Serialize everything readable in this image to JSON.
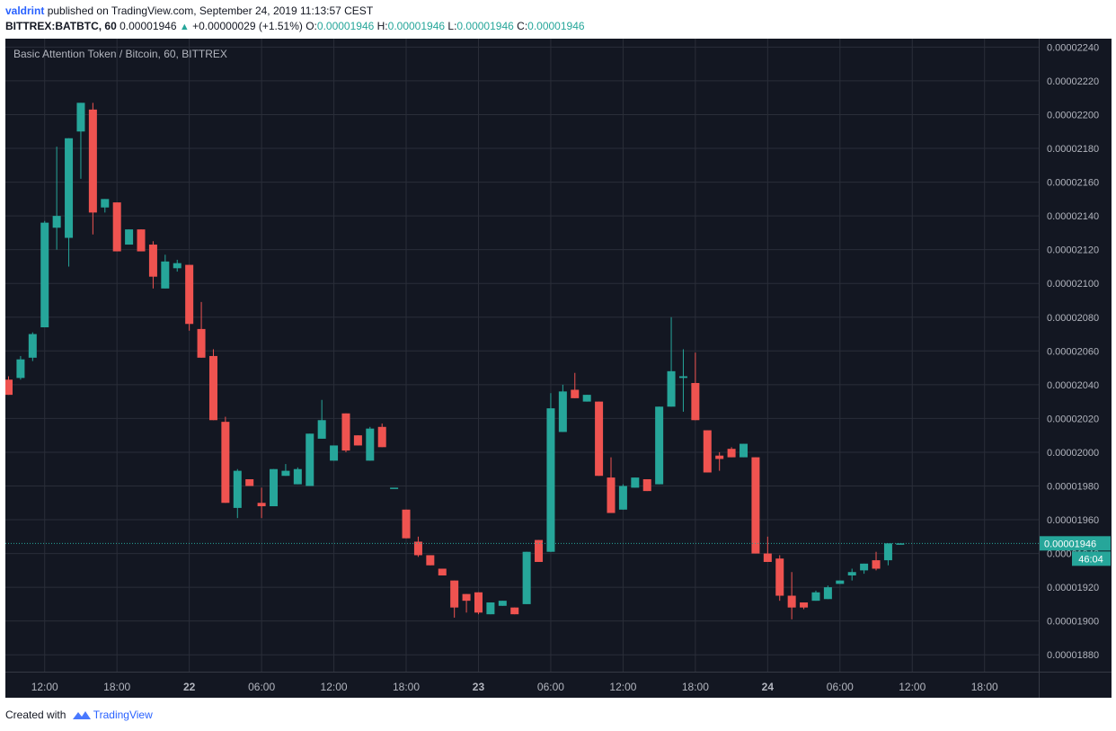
{
  "header": {
    "author": "valdrint",
    "published_text": "published on TradingView.com, September 24, 2019 11:13:57 CEST",
    "symbol": "BITTREX:BATBTC, 60",
    "last": "0.00001946",
    "change": "+0.00000029 (+1.51%)",
    "o_label": "O:",
    "o_value": "0.00001946",
    "h_label": "H:",
    "h_value": "0.00001946",
    "l_label": "L:",
    "l_value": "0.00001946",
    "c_label": "C:",
    "c_value": "0.00001946"
  },
  "footer": {
    "created_with": "Created with",
    "brand": "TradingView"
  },
  "colors": {
    "up": "#26a69a",
    "down": "#ef5350",
    "background": "#131722",
    "grid": "#2a2e39",
    "axis_text": "#b2b5be",
    "price_tag": "#26a69a"
  },
  "chart_data": {
    "type": "candlestick",
    "title": "Basic Attention Token / Bitcoin, 60, BITTREX",
    "ylim": [
      1.87e-05,
      2.245e-05
    ],
    "y_ticks": [
      "0.00001880",
      "0.00001900",
      "0.00001920",
      "0.00001940",
      "0.00001960",
      "0.00001980",
      "0.00002000",
      "0.00002020",
      "0.00002040",
      "0.00002060",
      "0.00002080",
      "0.00002100",
      "0.00002120",
      "0.00002140",
      "0.00002160",
      "0.00002180",
      "0.00002200",
      "0.00002220",
      "0.00002240"
    ],
    "x_ticks": [
      {
        "index": 3,
        "label": "12:00",
        "bold": false
      },
      {
        "index": 9,
        "label": "18:00",
        "bold": false
      },
      {
        "index": 15,
        "label": "22",
        "bold": true
      },
      {
        "index": 21,
        "label": "06:00",
        "bold": false
      },
      {
        "index": 27,
        "label": "12:00",
        "bold": false
      },
      {
        "index": 33,
        "label": "18:00",
        "bold": false
      },
      {
        "index": 39,
        "label": "23",
        "bold": true
      },
      {
        "index": 45,
        "label": "06:00",
        "bold": false
      },
      {
        "index": 51,
        "label": "12:00",
        "bold": false
      },
      {
        "index": 57,
        "label": "18:00",
        "bold": false
      },
      {
        "index": 63,
        "label": "24",
        "bold": true
      },
      {
        "index": 69,
        "label": "06:00",
        "bold": false
      },
      {
        "index": 75,
        "label": "12:00",
        "bold": false
      },
      {
        "index": 81,
        "label": "18:00",
        "bold": false
      }
    ],
    "last_price": "0.00001946",
    "last_price_value": 1.946e-05,
    "countdown": "46:04",
    "candles": [
      {
        "o": 2.043e-05,
        "h": 2.045e-05,
        "l": 2.034e-05,
        "c": 2.034e-05
      },
      {
        "o": 2.044e-05,
        "h": 2.057e-05,
        "l": 2.043e-05,
        "c": 2.055e-05
      },
      {
        "o": 2.056e-05,
        "h": 2.071e-05,
        "l": 2.054e-05,
        "c": 2.07e-05
      },
      {
        "o": 2.074e-05,
        "h": 2.137e-05,
        "l": 2.074e-05,
        "c": 2.136e-05
      },
      {
        "o": 2.133e-05,
        "h": 2.181e-05,
        "l": 2.12e-05,
        "c": 2.14e-05
      },
      {
        "o": 2.127e-05,
        "h": 2.186e-05,
        "l": 2.11e-05,
        "c": 2.186e-05
      },
      {
        "o": 2.19e-05,
        "h": 2.207e-05,
        "l": 2.162e-05,
        "c": 2.207e-05
      },
      {
        "o": 2.203e-05,
        "h": 2.207e-05,
        "l": 2.129e-05,
        "c": 2.142e-05
      },
      {
        "o": 2.145e-05,
        "h": 2.15e-05,
        "l": 2.142e-05,
        "c": 2.15e-05
      },
      {
        "o": 2.148e-05,
        "h": 2.148e-05,
        "l": 2.119e-05,
        "c": 2.119e-05
      },
      {
        "o": 2.123e-05,
        "h": 2.132e-05,
        "l": 2.123e-05,
        "c": 2.132e-05
      },
      {
        "o": 2.132e-05,
        "h": 2.132e-05,
        "l": 2.119e-05,
        "c": 2.119e-05
      },
      {
        "o": 2.123e-05,
        "h": 2.125e-05,
        "l": 2.097e-05,
        "c": 2.104e-05
      },
      {
        "o": 2.097e-05,
        "h": 2.117e-05,
        "l": 2.097e-05,
        "c": 2.113e-05
      },
      {
        "o": 2.109e-05,
        "h": 2.114e-05,
        "l": 2.107e-05,
        "c": 2.112e-05
      },
      {
        "o": 2.111e-05,
        "h": 2.111e-05,
        "l": 2.072e-05,
        "c": 2.076e-05
      },
      {
        "o": 2.073e-05,
        "h": 2.089e-05,
        "l": 2.056e-05,
        "c": 2.056e-05
      },
      {
        "o": 2.057e-05,
        "h": 2.061e-05,
        "l": 2.019e-05,
        "c": 2.019e-05
      },
      {
        "o": 2.018e-05,
        "h": 2.021e-05,
        "l": 1.97e-05,
        "c": 1.97e-05
      },
      {
        "o": 1.967e-05,
        "h": 1.99e-05,
        "l": 1.961e-05,
        "c": 1.989e-05
      },
      {
        "o": 1.984e-05,
        "h": 1.984e-05,
        "l": 1.98e-05,
        "c": 1.98e-05
      },
      {
        "o": 1.97e-05,
        "h": 1.979e-05,
        "l": 1.961e-05,
        "c": 1.968e-05
      },
      {
        "o": 1.968e-05,
        "h": 1.99e-05,
        "l": 1.968e-05,
        "c": 1.99e-05
      },
      {
        "o": 1.986e-05,
        "h": 1.993e-05,
        "l": 1.986e-05,
        "c": 1.989e-05
      },
      {
        "o": 1.981e-05,
        "h": 1.991e-05,
        "l": 1.981e-05,
        "c": 1.99e-05
      },
      {
        "o": 1.98e-05,
        "h": 2.011e-05,
        "l": 1.98e-05,
        "c": 2.011e-05
      },
      {
        "o": 2.008e-05,
        "h": 2.031e-05,
        "l": 2.008e-05,
        "c": 2.019e-05
      },
      {
        "o": 1.995e-05,
        "h": 2.004e-05,
        "l": 1.995e-05,
        "c": 2.004e-05
      },
      {
        "o": 2.023e-05,
        "h": 2.023e-05,
        "l": 2e-05,
        "c": 2.001e-05
      },
      {
        "o": 2.01e-05,
        "h": 2.01e-05,
        "l": 2.004e-05,
        "c": 2.004e-05
      },
      {
        "o": 1.995e-05,
        "h": 2.015e-05,
        "l": 1.995e-05,
        "c": 2.014e-05
      },
      {
        "o": 2.015e-05,
        "h": 2.017e-05,
        "l": 2.003e-05,
        "c": 2.003e-05
      },
      {
        "o": 1.979e-05,
        "h": 1.979e-05,
        "l": 1.979e-05,
        "c": 1.979e-05
      },
      {
        "o": 1.966e-05,
        "h": 1.966e-05,
        "l": 1.949e-05,
        "c": 1.949e-05
      },
      {
        "o": 1.947e-05,
        "h": 1.95e-05,
        "l": 1.938e-05,
        "c": 1.939e-05
      },
      {
        "o": 1.939e-05,
        "h": 1.939e-05,
        "l": 1.933e-05,
        "c": 1.933e-05
      },
      {
        "o": 1.931e-05,
        "h": 1.931e-05,
        "l": 1.927e-05,
        "c": 1.927e-05
      },
      {
        "o": 1.924e-05,
        "h": 1.924e-05,
        "l": 1.902e-05,
        "c": 1.908e-05
      },
      {
        "o": 1.916e-05,
        "h": 1.916e-05,
        "l": 1.905e-05,
        "c": 1.912e-05
      },
      {
        "o": 1.917e-05,
        "h": 1.917e-05,
        "l": 1.904e-05,
        "c": 1.905e-05
      },
      {
        "o": 1.904e-05,
        "h": 1.911e-05,
        "l": 1.904e-05,
        "c": 1.911e-05
      },
      {
        "o": 1.909e-05,
        "h": 1.912e-05,
        "l": 1.909e-05,
        "c": 1.912e-05
      },
      {
        "o": 1.908e-05,
        "h": 1.908e-05,
        "l": 1.904e-05,
        "c": 1.904e-05
      },
      {
        "o": 1.91e-05,
        "h": 1.941e-05,
        "l": 1.91e-05,
        "c": 1.941e-05
      },
      {
        "o": 1.948e-05,
        "h": 1.948e-05,
        "l": 1.935e-05,
        "c": 1.935e-05
      },
      {
        "o": 1.941e-05,
        "h": 2.035e-05,
        "l": 1.941e-05,
        "c": 2.026e-05
      },
      {
        "o": 2.012e-05,
        "h": 2.04e-05,
        "l": 2.012e-05,
        "c": 2.036e-05
      },
      {
        "o": 2.037e-05,
        "h": 2.047e-05,
        "l": 2.032e-05,
        "c": 2.032e-05
      },
      {
        "o": 2.03e-05,
        "h": 2.034e-05,
        "l": 2.03e-05,
        "c": 2.034e-05
      },
      {
        "o": 2.03e-05,
        "h": 2.03e-05,
        "l": 1.986e-05,
        "c": 1.986e-05
      },
      {
        "o": 1.985e-05,
        "h": 1.997e-05,
        "l": 1.964e-05,
        "c": 1.964e-05
      },
      {
        "o": 1.966e-05,
        "h": 1.981e-05,
        "l": 1.966e-05,
        "c": 1.98e-05
      },
      {
        "o": 1.979e-05,
        "h": 1.985e-05,
        "l": 1.979e-05,
        "c": 1.985e-05
      },
      {
        "o": 1.984e-05,
        "h": 1.984e-05,
        "l": 1.977e-05,
        "c": 1.977e-05
      },
      {
        "o": 1.981e-05,
        "h": 2.027e-05,
        "l": 1.981e-05,
        "c": 2.027e-05
      },
      {
        "o": 2.027e-05,
        "h": 2.08e-05,
        "l": 2.027e-05,
        "c": 2.048e-05
      },
      {
        "o": 2.044e-05,
        "h": 2.061e-05,
        "l": 2.024e-05,
        "c": 2.045e-05
      },
      {
        "o": 2.041e-05,
        "h": 2.059e-05,
        "l": 2.019e-05,
        "c": 2.019e-05
      },
      {
        "o": 2.013e-05,
        "h": 2.013e-05,
        "l": 1.988e-05,
        "c": 1.988e-05
      },
      {
        "o": 1.998e-05,
        "h": 2e-05,
        "l": 1.989e-05,
        "c": 1.996e-05
      },
      {
        "o": 2.002e-05,
        "h": 2.003e-05,
        "l": 1.997e-05,
        "c": 1.997e-05
      },
      {
        "o": 1.997e-05,
        "h": 2.005e-05,
        "l": 1.997e-05,
        "c": 2.005e-05
      },
      {
        "o": 1.997e-05,
        "h": 1.997e-05,
        "l": 1.94e-05,
        "c": 1.94e-05
      },
      {
        "o": 1.94e-05,
        "h": 1.95e-05,
        "l": 1.935e-05,
        "c": 1.935e-05
      },
      {
        "o": 1.937e-05,
        "h": 1.939e-05,
        "l": 1.912e-05,
        "c": 1.915e-05
      },
      {
        "o": 1.915e-05,
        "h": 1.929e-05,
        "l": 1.901e-05,
        "c": 1.908e-05
      },
      {
        "o": 1.911e-05,
        "h": 1.911e-05,
        "l": 1.907e-05,
        "c": 1.908e-05
      },
      {
        "o": 1.912e-05,
        "h": 1.918e-05,
        "l": 1.912e-05,
        "c": 1.917e-05
      },
      {
        "o": 1.913e-05,
        "h": 1.921e-05,
        "l": 1.913e-05,
        "c": 1.92e-05
      },
      {
        "o": 1.922e-05,
        "h": 1.924e-05,
        "l": 1.922e-05,
        "c": 1.924e-05
      },
      {
        "o": 1.927e-05,
        "h": 1.931e-05,
        "l": 1.924e-05,
        "c": 1.929e-05
      },
      {
        "o": 1.93e-05,
        "h": 1.934e-05,
        "l": 1.928e-05,
        "c": 1.934e-05
      },
      {
        "o": 1.936e-05,
        "h": 1.941e-05,
        "l": 1.93e-05,
        "c": 1.931e-05
      },
      {
        "o": 1.936e-05,
        "h": 1.946e-05,
        "l": 1.933e-05,
        "c": 1.946e-05
      },
      {
        "o": 1.946e-05,
        "h": 1.946e-05,
        "l": 1.946e-05,
        "c": 1.946e-05
      }
    ]
  }
}
